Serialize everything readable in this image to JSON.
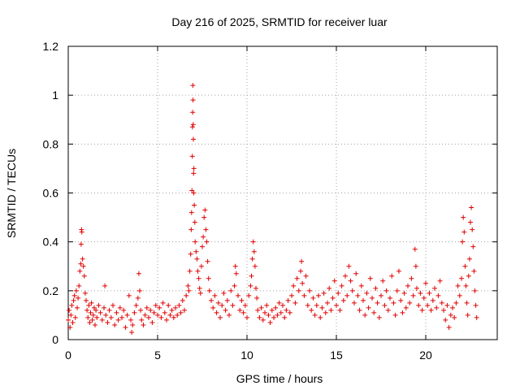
{
  "chart_data": {
    "type": "scatter",
    "title": "Day 216 of 2025, SRMTID for receiver luar",
    "xlabel": "GPS time / hours",
    "ylabel": "SRMTID / TECUs",
    "xlim": [
      0,
      24
    ],
    "ylim": [
      0,
      1.2
    ],
    "xticks": [
      0,
      5,
      10,
      15,
      20
    ],
    "xtick_labels": [
      "0",
      "5",
      "10",
      "15",
      "20"
    ],
    "yticks": [
      0,
      0.2,
      0.4,
      0.6,
      0.8,
      1.0,
      1.2
    ],
    "ytick_labels": [
      "0",
      "0.2",
      "0.4",
      "0.6",
      "0.8",
      "1",
      "1.2"
    ],
    "grid": true,
    "marker": "+",
    "color": "#e00000",
    "series": [
      {
        "name": "SRMTID",
        "points": [
          [
            0.0,
            0.08
          ],
          [
            0.05,
            0.12
          ],
          [
            0.1,
            0.05
          ],
          [
            0.15,
            0.1
          ],
          [
            0.2,
            0.14
          ],
          [
            0.25,
            0.07
          ],
          [
            0.3,
            0.16
          ],
          [
            0.35,
            0.18
          ],
          [
            0.4,
            0.09
          ],
          [
            0.45,
            0.2
          ],
          [
            0.5,
            0.13
          ],
          [
            0.55,
            0.17
          ],
          [
            0.6,
            0.22
          ],
          [
            0.65,
            0.28
          ],
          [
            0.7,
            0.31
          ],
          [
            0.72,
            0.39
          ],
          [
            0.74,
            0.45
          ],
          [
            0.76,
            0.44
          ],
          [
            0.8,
            0.33
          ],
          [
            0.85,
            0.3
          ],
          [
            0.9,
            0.26
          ],
          [
            0.95,
            0.19
          ],
          [
            1.0,
            0.16
          ],
          [
            1.05,
            0.12
          ],
          [
            1.1,
            0.09
          ],
          [
            1.15,
            0.14
          ],
          [
            1.2,
            0.07
          ],
          [
            1.25,
            0.11
          ],
          [
            1.3,
            0.15
          ],
          [
            1.35,
            0.08
          ],
          [
            1.4,
            0.1
          ],
          [
            1.45,
            0.13
          ],
          [
            1.5,
            0.06
          ],
          [
            1.55,
            0.12
          ],
          [
            1.6,
            0.09
          ],
          [
            1.7,
            0.14
          ],
          [
            1.8,
            0.11
          ],
          [
            1.9,
            0.08
          ],
          [
            2.0,
            0.13
          ],
          [
            2.05,
            0.22
          ],
          [
            2.1,
            0.1
          ],
          [
            2.2,
            0.07
          ],
          [
            2.3,
            0.12
          ],
          [
            2.4,
            0.09
          ],
          [
            2.5,
            0.14
          ],
          [
            2.6,
            0.06
          ],
          [
            2.7,
            0.11
          ],
          [
            2.8,
            0.08
          ],
          [
            2.9,
            0.13
          ],
          [
            3.0,
            0.09
          ],
          [
            3.1,
            0.12
          ],
          [
            3.2,
            0.05
          ],
          [
            3.3,
            0.1
          ],
          [
            3.4,
            0.18
          ],
          [
            3.5,
            0.08
          ],
          [
            3.55,
            0.03
          ],
          [
            3.6,
            0.06
          ],
          [
            3.7,
            0.11
          ],
          [
            3.8,
            0.14
          ],
          [
            3.9,
            0.17
          ],
          [
            3.95,
            0.27
          ],
          [
            4.0,
            0.2
          ],
          [
            4.05,
            0.12
          ],
          [
            4.1,
            0.08
          ],
          [
            4.2,
            0.06
          ],
          [
            4.3,
            0.1
          ],
          [
            4.4,
            0.13
          ],
          [
            4.5,
            0.09
          ],
          [
            4.6,
            0.12
          ],
          [
            4.7,
            0.07
          ],
          [
            4.8,
            0.11
          ],
          [
            4.9,
            0.14
          ],
          [
            5.0,
            0.1
          ],
          [
            5.1,
            0.13
          ],
          [
            5.2,
            0.09
          ],
          [
            5.3,
            0.15
          ],
          [
            5.4,
            0.11
          ],
          [
            5.5,
            0.08
          ],
          [
            5.6,
            0.14
          ],
          [
            5.7,
            0.1
          ],
          [
            5.8,
            0.12
          ],
          [
            5.9,
            0.09
          ],
          [
            6.0,
            0.13
          ],
          [
            6.1,
            0.1
          ],
          [
            6.2,
            0.14
          ],
          [
            6.3,
            0.11
          ],
          [
            6.4,
            0.16
          ],
          [
            6.5,
            0.12
          ],
          [
            6.6,
            0.18
          ],
          [
            6.7,
            0.22
          ],
          [
            6.75,
            0.2
          ],
          [
            6.8,
            0.28
          ],
          [
            6.85,
            0.35
          ],
          [
            6.88,
            0.45
          ],
          [
            6.9,
            0.52
          ],
          [
            6.92,
            0.61
          ],
          [
            6.94,
            0.75
          ],
          [
            6.95,
            0.87
          ],
          [
            6.96,
            0.93
          ],
          [
            6.97,
            1.04
          ],
          [
            6.98,
            0.98
          ],
          [
            6.99,
            0.88
          ],
          [
            7.0,
            0.82
          ],
          [
            7.01,
            0.68
          ],
          [
            7.02,
            0.6
          ],
          [
            7.03,
            0.7
          ],
          [
            7.05,
            0.55
          ],
          [
            7.08,
            0.48
          ],
          [
            7.1,
            0.4
          ],
          [
            7.15,
            0.36
          ],
          [
            7.2,
            0.33
          ],
          [
            7.25,
            0.28
          ],
          [
            7.3,
            0.25
          ],
          [
            7.35,
            0.21
          ],
          [
            7.4,
            0.19
          ],
          [
            7.45,
            0.3
          ],
          [
            7.5,
            0.38
          ],
          [
            7.55,
            0.42
          ],
          [
            7.6,
            0.5
          ],
          [
            7.65,
            0.53
          ],
          [
            7.7,
            0.45
          ],
          [
            7.75,
            0.4
          ],
          [
            7.8,
            0.32
          ],
          [
            7.85,
            0.25
          ],
          [
            7.9,
            0.2
          ],
          [
            8.0,
            0.16
          ],
          [
            8.1,
            0.13
          ],
          [
            8.2,
            0.18
          ],
          [
            8.3,
            0.11
          ],
          [
            8.4,
            0.15
          ],
          [
            8.5,
            0.09
          ],
          [
            8.6,
            0.14
          ],
          [
            8.7,
            0.19
          ],
          [
            8.8,
            0.12
          ],
          [
            8.9,
            0.16
          ],
          [
            9.0,
            0.1
          ],
          [
            9.1,
            0.2
          ],
          [
            9.2,
            0.14
          ],
          [
            9.3,
            0.22
          ],
          [
            9.35,
            0.3
          ],
          [
            9.4,
            0.27
          ],
          [
            9.5,
            0.18
          ],
          [
            9.6,
            0.12
          ],
          [
            9.7,
            0.16
          ],
          [
            9.8,
            0.11
          ],
          [
            9.9,
            0.14
          ],
          [
            10.0,
            0.09
          ],
          [
            10.1,
            0.18
          ],
          [
            10.2,
            0.22
          ],
          [
            10.25,
            0.26
          ],
          [
            10.3,
            0.33
          ],
          [
            10.35,
            0.4
          ],
          [
            10.4,
            0.36
          ],
          [
            10.45,
            0.3
          ],
          [
            10.5,
            0.21
          ],
          [
            10.55,
            0.17
          ],
          [
            10.6,
            0.12
          ],
          [
            10.7,
            0.09
          ],
          [
            10.8,
            0.13
          ],
          [
            10.9,
            0.08
          ],
          [
            11.0,
            0.11
          ],
          [
            11.1,
            0.14
          ],
          [
            11.2,
            0.1
          ],
          [
            11.3,
            0.07
          ],
          [
            11.4,
            0.12
          ],
          [
            11.5,
            0.09
          ],
          [
            11.6,
            0.13
          ],
          [
            11.7,
            0.1
          ],
          [
            11.8,
            0.15
          ],
          [
            11.9,
            0.11
          ],
          [
            12.0,
            0.14
          ],
          [
            12.1,
            0.09
          ],
          [
            12.2,
            0.12
          ],
          [
            12.3,
            0.16
          ],
          [
            12.4,
            0.11
          ],
          [
            12.5,
            0.18
          ],
          [
            12.6,
            0.22
          ],
          [
            12.7,
            0.15
          ],
          [
            12.8,
            0.25
          ],
          [
            12.9,
            0.2
          ],
          [
            13.0,
            0.28
          ],
          [
            13.05,
            0.32
          ],
          [
            13.1,
            0.23
          ],
          [
            13.2,
            0.18
          ],
          [
            13.3,
            0.26
          ],
          [
            13.4,
            0.14
          ],
          [
            13.5,
            0.2
          ],
          [
            13.6,
            0.12
          ],
          [
            13.7,
            0.17
          ],
          [
            13.8,
            0.1
          ],
          [
            13.9,
            0.14
          ],
          [
            14.0,
            0.18
          ],
          [
            14.1,
            0.09
          ],
          [
            14.2,
            0.13
          ],
          [
            14.3,
            0.19
          ],
          [
            14.4,
            0.11
          ],
          [
            14.5,
            0.15
          ],
          [
            14.6,
            0.21
          ],
          [
            14.7,
            0.12
          ],
          [
            14.8,
            0.17
          ],
          [
            14.9,
            0.24
          ],
          [
            15.0,
            0.14
          ],
          [
            15.1,
            0.19
          ],
          [
            15.2,
            0.12
          ],
          [
            15.3,
            0.22
          ],
          [
            15.4,
            0.16
          ],
          [
            15.5,
            0.26
          ],
          [
            15.6,
            0.18
          ],
          [
            15.7,
            0.3
          ],
          [
            15.8,
            0.24
          ],
          [
            15.9,
            0.2
          ],
          [
            16.0,
            0.15
          ],
          [
            16.1,
            0.27
          ],
          [
            16.2,
            0.18
          ],
          [
            16.3,
            0.12
          ],
          [
            16.4,
            0.22
          ],
          [
            16.5,
            0.16
          ],
          [
            16.6,
            0.1
          ],
          [
            16.7,
            0.19
          ],
          [
            16.8,
            0.13
          ],
          [
            16.9,
            0.25
          ],
          [
            17.0,
            0.17
          ],
          [
            17.1,
            0.11
          ],
          [
            17.2,
            0.21
          ],
          [
            17.3,
            0.15
          ],
          [
            17.4,
            0.09
          ],
          [
            17.5,
            0.18
          ],
          [
            17.6,
            0.24
          ],
          [
            17.7,
            0.14
          ],
          [
            17.8,
            0.2
          ],
          [
            17.9,
            0.12
          ],
          [
            18.0,
            0.17
          ],
          [
            18.1,
            0.26
          ],
          [
            18.2,
            0.15
          ],
          [
            18.3,
            0.1
          ],
          [
            18.4,
            0.2
          ],
          [
            18.5,
            0.28
          ],
          [
            18.6,
            0.16
          ],
          [
            18.7,
            0.11
          ],
          [
            18.8,
            0.19
          ],
          [
            18.9,
            0.13
          ],
          [
            19.0,
            0.22
          ],
          [
            19.1,
            0.15
          ],
          [
            19.2,
            0.25
          ],
          [
            19.3,
            0.18
          ],
          [
            19.4,
            0.37
          ],
          [
            19.45,
            0.3
          ],
          [
            19.5,
            0.21
          ],
          [
            19.6,
            0.14
          ],
          [
            19.7,
            0.19
          ],
          [
            19.8,
            0.12
          ],
          [
            19.9,
            0.17
          ],
          [
            20.0,
            0.23
          ],
          [
            20.1,
            0.14
          ],
          [
            20.2,
            0.19
          ],
          [
            20.3,
            0.12
          ],
          [
            20.4,
            0.16
          ],
          [
            20.5,
            0.21
          ],
          [
            20.6,
            0.13
          ],
          [
            20.7,
            0.18
          ],
          [
            20.8,
            0.24
          ],
          [
            20.9,
            0.15
          ],
          [
            21.0,
            0.12
          ],
          [
            21.1,
            0.08
          ],
          [
            21.2,
            0.14
          ],
          [
            21.3,
            0.05
          ],
          [
            21.4,
            0.1
          ],
          [
            21.5,
            0.13
          ],
          [
            21.6,
            0.09
          ],
          [
            21.7,
            0.15
          ],
          [
            21.8,
            0.22
          ],
          [
            21.9,
            0.18
          ],
          [
            22.0,
            0.25
          ],
          [
            22.05,
            0.4
          ],
          [
            22.1,
            0.5
          ],
          [
            22.15,
            0.44
          ],
          [
            22.2,
            0.3
          ],
          [
            22.25,
            0.22
          ],
          [
            22.3,
            0.15
          ],
          [
            22.35,
            0.1
          ],
          [
            22.4,
            0.26
          ],
          [
            22.45,
            0.33
          ],
          [
            22.5,
            0.48
          ],
          [
            22.55,
            0.54
          ],
          [
            22.6,
            0.45
          ],
          [
            22.65,
            0.38
          ],
          [
            22.7,
            0.28
          ],
          [
            22.75,
            0.2
          ],
          [
            22.8,
            0.14
          ],
          [
            22.85,
            0.09
          ]
        ]
      }
    ]
  }
}
